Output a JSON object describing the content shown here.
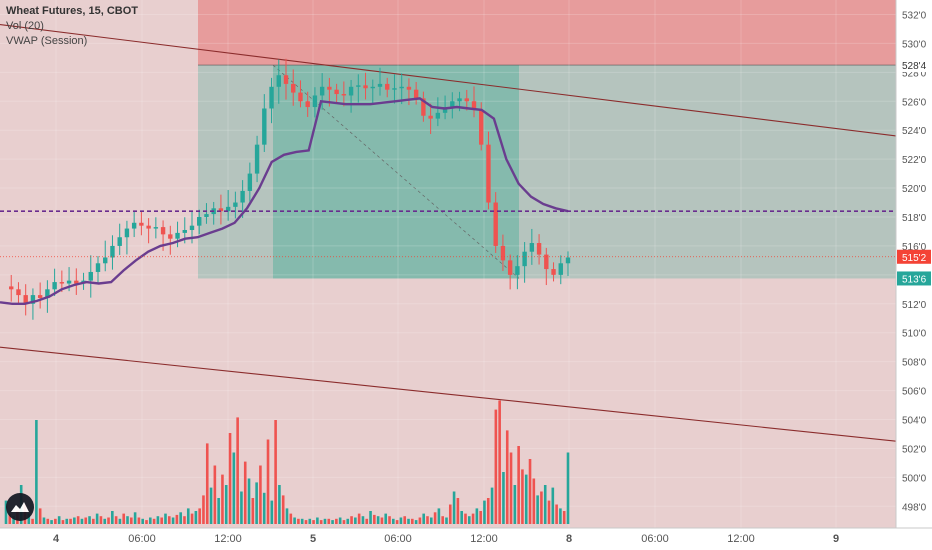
{
  "legend": {
    "title": "Wheat Futures, 15, CBOT",
    "line2": "Vol (20)",
    "line3": "VWAP (Session)"
  },
  "colors": {
    "up": "#26a69a",
    "down": "#ef5350",
    "vwap": "#6a3d8f",
    "background": "#e8cfcf",
    "profit_zone": "#4caf9a",
    "stop_zone": "#e57373",
    "dashed_level": "#6a2c8f",
    "price_line": "#f44336",
    "trend_line": "#8b2c2c"
  },
  "chart_data": {
    "type": "candlestick",
    "title": "Wheat Futures, 15, CBOT",
    "xlabel": "",
    "ylabel": "",
    "ylim": [
      496.5,
      533
    ],
    "y_ticks": [
      "532'0",
      "530'0",
      "528'0",
      "526'0",
      "524'0",
      "522'0",
      "520'0",
      "518'0",
      "516'0",
      "514'0",
      "512'0",
      "510'0",
      "508'0",
      "506'0",
      "504'0",
      "502'0",
      "500'0",
      "498'0"
    ],
    "y_tick_values": [
      532,
      530,
      528,
      526,
      524,
      522,
      520,
      518,
      516,
      514,
      512,
      510,
      508,
      506,
      504,
      502,
      500,
      498
    ],
    "x_ticks": [
      "4",
      "06:00",
      "12:00",
      "5",
      "06:00",
      "12:00",
      "8",
      "06:00",
      "12:00",
      "9"
    ],
    "price_labels": [
      {
        "text": "528'4",
        "value": 528.5
      },
      {
        "text": "515'2",
        "value": 515.25
      },
      {
        "text": "513'6",
        "value": 513.75
      }
    ],
    "dashed_level": 518.4,
    "current_price": 515.25,
    "position": {
      "take_profit": 528.5,
      "entry": 513.75,
      "stop": 532.5
    },
    "trend_lines": [
      {
        "from": [
          "start",
          531.3
        ],
        "to": [
          "end",
          523.6
        ]
      },
      {
        "from": [
          "start",
          509.0
        ],
        "to": [
          "end",
          502.5
        ]
      }
    ],
    "price_series": {
      "name": "Wheat Futures",
      "close_path": [
        513.2,
        513.0,
        512.6,
        512.0,
        512.6,
        512.4,
        513.0,
        513.5,
        513.4,
        513.6,
        513.4,
        513.6,
        514.2,
        514.8,
        515.2,
        516.0,
        516.6,
        517.2,
        517.6,
        517.4,
        517.2,
        517.3,
        516.8,
        516.5,
        516.9,
        517.1,
        517.4,
        518.0,
        518.2,
        518.6,
        518.4,
        518.7,
        519.0,
        519.8,
        521.0,
        523.0,
        525.5,
        527.0,
        527.8,
        527.2,
        526.6,
        526.0,
        525.6,
        526.4,
        527.0,
        526.8,
        526.5,
        526.4,
        527.0,
        527.1,
        526.9,
        527.0,
        527.2,
        526.8,
        526.9,
        527.0,
        526.8,
        526.2,
        525.0,
        524.8,
        525.2,
        525.6,
        526.0,
        526.2,
        526.0,
        525.4,
        523.0,
        519.0,
        516.0,
        515.0,
        514.0,
        514.6,
        515.6,
        516.2,
        515.4,
        514.4,
        514.0,
        514.8,
        515.2
      ]
    },
    "vwap_series": {
      "name": "VWAP (Session)",
      "values": [
        512.1,
        512.0,
        512.0,
        512.2,
        512.5,
        513.0,
        513.3,
        513.5,
        513.4,
        513.5,
        514.3,
        515.0,
        515.6,
        516.0,
        516.2,
        516.5,
        516.6,
        516.9,
        517.2,
        517.6,
        518.6,
        520.0,
        521.8,
        522.3,
        522.5,
        522.6,
        526.0,
        525.9,
        525.8,
        525.8,
        525.8,
        525.9,
        526.0,
        526.1,
        526.2,
        525.6,
        525.5,
        525.6,
        525.5,
        525.4,
        524.8,
        522.0,
        520.3,
        519.4,
        518.9,
        518.6,
        518.4
      ]
    },
    "volume_series": {
      "name": "Vol (20)",
      "scale_max": 100,
      "bars": [
        {
          "v": 18,
          "d": "up"
        },
        {
          "v": 8,
          "d": "down"
        },
        {
          "v": 6,
          "d": "up"
        },
        {
          "v": 10,
          "d": "down"
        },
        {
          "v": 30,
          "d": "up"
        },
        {
          "v": 15,
          "d": "down"
        },
        {
          "v": 8,
          "d": "up"
        },
        {
          "v": 4,
          "d": "down"
        },
        {
          "v": 80,
          "d": "up"
        },
        {
          "v": 12,
          "d": "down"
        },
        {
          "v": 5,
          "d": "up"
        },
        {
          "v": 4,
          "d": "down"
        },
        {
          "v": 3,
          "d": "up"
        },
        {
          "v": 4,
          "d": "down"
        },
        {
          "v": 6,
          "d": "up"
        },
        {
          "v": 3,
          "d": "down"
        },
        {
          "v": 4,
          "d": "up"
        },
        {
          "v": 4,
          "d": "down"
        },
        {
          "v": 5,
          "d": "up"
        },
        {
          "v": 6,
          "d": "down"
        },
        {
          "v": 4,
          "d": "up"
        },
        {
          "v": 5,
          "d": "down"
        },
        {
          "v": 6,
          "d": "up"
        },
        {
          "v": 4,
          "d": "down"
        },
        {
          "v": 8,
          "d": "up"
        },
        {
          "v": 6,
          "d": "down"
        },
        {
          "v": 4,
          "d": "up"
        },
        {
          "v": 5,
          "d": "down"
        },
        {
          "v": 10,
          "d": "up"
        },
        {
          "v": 6,
          "d": "down"
        },
        {
          "v": 4,
          "d": "up"
        },
        {
          "v": 8,
          "d": "down"
        },
        {
          "v": 6,
          "d": "up"
        },
        {
          "v": 5,
          "d": "down"
        },
        {
          "v": 9,
          "d": "up"
        },
        {
          "v": 5,
          "d": "down"
        },
        {
          "v": 4,
          "d": "up"
        },
        {
          "v": 3,
          "d": "down"
        },
        {
          "v": 5,
          "d": "up"
        },
        {
          "v": 4,
          "d": "down"
        },
        {
          "v": 6,
          "d": "up"
        },
        {
          "v": 5,
          "d": "down"
        },
        {
          "v": 8,
          "d": "up"
        },
        {
          "v": 6,
          "d": "down"
        },
        {
          "v": 5,
          "d": "up"
        },
        {
          "v": 7,
          "d": "down"
        },
        {
          "v": 9,
          "d": "up"
        },
        {
          "v": 6,
          "d": "down"
        },
        {
          "v": 12,
          "d": "up"
        },
        {
          "v": 8,
          "d": "down"
        },
        {
          "v": 10,
          "d": "up"
        },
        {
          "v": 12,
          "d": "down"
        },
        {
          "v": 22,
          "d": "down"
        },
        {
          "v": 62,
          "d": "down"
        },
        {
          "v": 28,
          "d": "up"
        },
        {
          "v": 45,
          "d": "down"
        },
        {
          "v": 20,
          "d": "up"
        },
        {
          "v": 38,
          "d": "down"
        },
        {
          "v": 30,
          "d": "up"
        },
        {
          "v": 70,
          "d": "down"
        },
        {
          "v": 55,
          "d": "up"
        },
        {
          "v": 82,
          "d": "down"
        },
        {
          "v": 25,
          "d": "up"
        },
        {
          "v": 48,
          "d": "down"
        },
        {
          "v": 35,
          "d": "up"
        },
        {
          "v": 20,
          "d": "down"
        },
        {
          "v": 32,
          "d": "up"
        },
        {
          "v": 45,
          "d": "down"
        },
        {
          "v": 24,
          "d": "up"
        },
        {
          "v": 65,
          "d": "down"
        },
        {
          "v": 18,
          "d": "up"
        },
        {
          "v": 80,
          "d": "down"
        },
        {
          "v": 30,
          "d": "up"
        },
        {
          "v": 22,
          "d": "down"
        },
        {
          "v": 12,
          "d": "up"
        },
        {
          "v": 8,
          "d": "down"
        },
        {
          "v": 5,
          "d": "up"
        },
        {
          "v": 4,
          "d": "down"
        },
        {
          "v": 4,
          "d": "up"
        },
        {
          "v": 3,
          "d": "down"
        },
        {
          "v": 4,
          "d": "up"
        },
        {
          "v": 3,
          "d": "down"
        },
        {
          "v": 5,
          "d": "up"
        },
        {
          "v": 3,
          "d": "down"
        },
        {
          "v": 4,
          "d": "up"
        },
        {
          "v": 4,
          "d": "down"
        },
        {
          "v": 3,
          "d": "up"
        },
        {
          "v": 4,
          "d": "down"
        },
        {
          "v": 5,
          "d": "up"
        },
        {
          "v": 3,
          "d": "down"
        },
        {
          "v": 4,
          "d": "up"
        },
        {
          "v": 6,
          "d": "down"
        },
        {
          "v": 5,
          "d": "up"
        },
        {
          "v": 8,
          "d": "down"
        },
        {
          "v": 6,
          "d": "up"
        },
        {
          "v": 4,
          "d": "down"
        },
        {
          "v": 10,
          "d": "up"
        },
        {
          "v": 7,
          "d": "down"
        },
        {
          "v": 6,
          "d": "up"
        },
        {
          "v": 5,
          "d": "down"
        },
        {
          "v": 8,
          "d": "up"
        },
        {
          "v": 6,
          "d": "down"
        },
        {
          "v": 4,
          "d": "up"
        },
        {
          "v": 3,
          "d": "down"
        },
        {
          "v": 5,
          "d": "up"
        },
        {
          "v": 6,
          "d": "down"
        },
        {
          "v": 4,
          "d": "up"
        },
        {
          "v": 4,
          "d": "down"
        },
        {
          "v": 3,
          "d": "up"
        },
        {
          "v": 5,
          "d": "down"
        },
        {
          "v": 8,
          "d": "up"
        },
        {
          "v": 6,
          "d": "down"
        },
        {
          "v": 5,
          "d": "up"
        },
        {
          "v": 9,
          "d": "down"
        },
        {
          "v": 12,
          "d": "up"
        },
        {
          "v": 6,
          "d": "down"
        },
        {
          "v": 5,
          "d": "up"
        },
        {
          "v": 15,
          "d": "down"
        },
        {
          "v": 25,
          "d": "up"
        },
        {
          "v": 20,
          "d": "down"
        },
        {
          "v": 10,
          "d": "up"
        },
        {
          "v": 8,
          "d": "down"
        },
        {
          "v": 6,
          "d": "up"
        },
        {
          "v": 8,
          "d": "down"
        },
        {
          "v": 12,
          "d": "up"
        },
        {
          "v": 10,
          "d": "down"
        },
        {
          "v": 18,
          "d": "up"
        },
        {
          "v": 20,
          "d": "down"
        },
        {
          "v": 28,
          "d": "up"
        },
        {
          "v": 88,
          "d": "down"
        },
        {
          "v": 95,
          "d": "down"
        },
        {
          "v": 40,
          "d": "up"
        },
        {
          "v": 72,
          "d": "down"
        },
        {
          "v": 55,
          "d": "down"
        },
        {
          "v": 30,
          "d": "up"
        },
        {
          "v": 60,
          "d": "down"
        },
        {
          "v": 42,
          "d": "down"
        },
        {
          "v": 38,
          "d": "up"
        },
        {
          "v": 50,
          "d": "down"
        },
        {
          "v": 35,
          "d": "down"
        },
        {
          "v": 22,
          "d": "up"
        },
        {
          "v": 25,
          "d": "down"
        },
        {
          "v": 30,
          "d": "up"
        },
        {
          "v": 18,
          "d": "down"
        },
        {
          "v": 28,
          "d": "up"
        },
        {
          "v": 15,
          "d": "down"
        },
        {
          "v": 12,
          "d": "up"
        },
        {
          "v": 10,
          "d": "down"
        },
        {
          "v": 55,
          "d": "up"
        }
      ]
    },
    "grid": true,
    "legend_position": "top-left"
  }
}
